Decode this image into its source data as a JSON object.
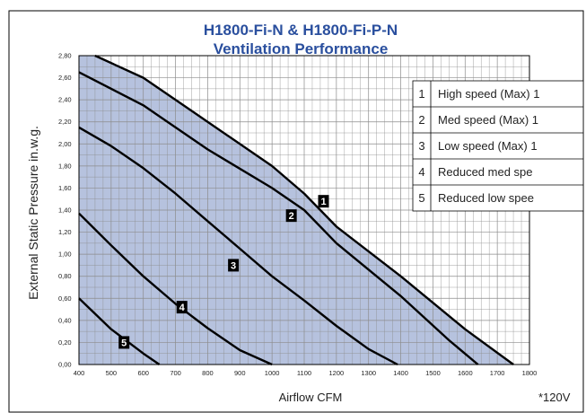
{
  "chart_data": {
    "type": "line",
    "title": [
      "H1800-Fi-N & H1800-Fi-P-N",
      "Ventilation Performance"
    ],
    "xlabel": "Airflow CFM",
    "ylabel": "External Static Pressure in.w.g.",
    "footnote": "*120V",
    "xlim": [
      400,
      1800
    ],
    "ylim": [
      0,
      2.8
    ],
    "x_ticks": [
      "400",
      "500",
      "600",
      "700",
      "800",
      "900",
      "1000",
      "1100",
      "1200",
      "1300",
      "1400",
      "1500",
      "1600",
      "1700",
      "1800"
    ],
    "y_ticks": [
      "0,00",
      "0,20",
      "0,40",
      "0,60",
      "0,80",
      "1,00",
      "1,20",
      "1,40",
      "1,60",
      "1,80",
      "2,00",
      "2,20",
      "2,40",
      "2,60",
      "2,80"
    ],
    "grid": true,
    "legend_position": "top-right (clipped)",
    "colors": {
      "title": "#2a4f9e",
      "fill": "#b6c2de",
      "line": "#000000",
      "grid": "#8c8c8c",
      "marker_bg": "#000000",
      "marker_text": "#ffffff"
    },
    "series": [
      {
        "label": "1",
        "legend": "High speed (Max) 1",
        "x": [
          450,
          600,
          800,
          1000,
          1100,
          1200,
          1400,
          1600,
          1750
        ],
        "y": [
          2.8,
          2.6,
          2.2,
          1.8,
          1.55,
          1.25,
          0.8,
          0.32,
          0.0
        ],
        "marker_at": [
          1160,
          1.48
        ]
      },
      {
        "label": "2",
        "legend": "Med speed (Max) 1",
        "x": [
          400,
          600,
          800,
          1000,
          1100,
          1200,
          1400,
          1550,
          1640
        ],
        "y": [
          2.65,
          2.35,
          1.95,
          1.6,
          1.4,
          1.1,
          0.62,
          0.22,
          0.0
        ],
        "marker_at": [
          1060,
          1.35
        ]
      },
      {
        "label": "3",
        "legend": "Low speed (Max) 1",
        "x": [
          400,
          500,
          600,
          700,
          800,
          900,
          1000,
          1100,
          1200,
          1300,
          1390
        ],
        "y": [
          2.15,
          1.98,
          1.78,
          1.55,
          1.3,
          1.05,
          0.8,
          0.58,
          0.35,
          0.14,
          0.0
        ],
        "marker_at": [
          880,
          0.9
        ]
      },
      {
        "label": "4",
        "legend": "Reduced med spe",
        "x": [
          400,
          500,
          600,
          700,
          800,
          900,
          1000
        ],
        "y": [
          1.37,
          1.08,
          0.8,
          0.55,
          0.33,
          0.13,
          0.0
        ],
        "marker_at": [
          720,
          0.52
        ]
      },
      {
        "label": "5",
        "legend": "Reduced low spee",
        "x": [
          400,
          500,
          600,
          650
        ],
        "y": [
          0.6,
          0.32,
          0.1,
          0.0
        ],
        "marker_at": [
          540,
          0.2
        ]
      }
    ]
  }
}
